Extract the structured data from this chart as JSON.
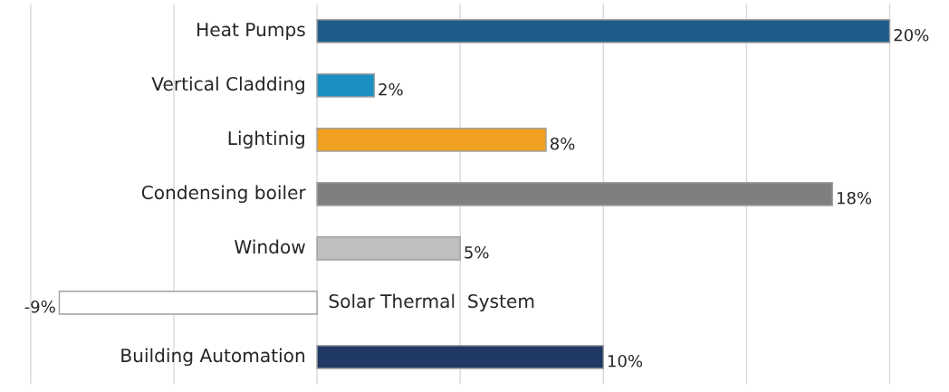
{
  "chart_data": {
    "type": "bar",
    "orientation": "horizontal",
    "categories": [
      "Heat Pumps",
      "Vertical Cladding",
      "Lightinig",
      "Condensing boiler",
      "Window",
      "Solar Thermal  System",
      "Building Automation"
    ],
    "values": [
      20,
      2,
      8,
      18,
      5,
      -9,
      10
    ],
    "value_labels": [
      "20%",
      "2%",
      "8%",
      "18%",
      "5%",
      "-9%",
      "10%"
    ],
    "colors": [
      "#1f5c8a",
      "#1a8fc0",
      "#f0a020",
      "#7f7f7f",
      "#bfbfbf",
      "#ffffff",
      "#1f3864"
    ],
    "xticks": [
      {
        "value": -10,
        "label": null
      },
      {
        "value": -5,
        "label": null
      },
      {
        "value": 0,
        "label": null
      },
      {
        "value": 5,
        "label": null
      },
      {
        "value": 10,
        "label": null
      },
      {
        "value": 15,
        "label": null
      },
      {
        "value": 20,
        "label": null
      }
    ],
    "grid": "x"
  }
}
